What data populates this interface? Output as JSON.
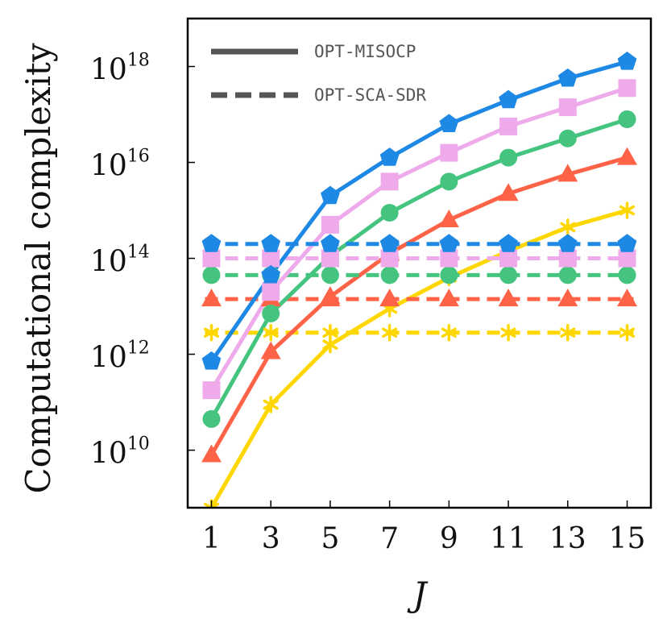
{
  "chart_data": {
    "type": "line",
    "xlabel": "J",
    "ylabel": "Computational complexity",
    "x": [
      1,
      3,
      5,
      7,
      9,
      11,
      13,
      15
    ],
    "xlim": [
      0.2,
      15.8
    ],
    "y_scale": "log",
    "ylim_log10": [
      8.8,
      19.0
    ],
    "y_ticks": [
      {
        "base": "10",
        "exp": "10",
        "log10": 10
      },
      {
        "base": "10",
        "exp": "12",
        "log10": 12
      },
      {
        "base": "10",
        "exp": "14",
        "log10": 14
      },
      {
        "base": "10",
        "exp": "16",
        "log10": 16
      },
      {
        "base": "10",
        "exp": "18",
        "log10": 18
      }
    ],
    "legend": {
      "placement": "top-left",
      "entries": [
        {
          "label": "OPT-MISOCP",
          "style": "solid"
        },
        {
          "label": "OPT-SCA-SDR",
          "style": "dashed"
        }
      ]
    },
    "groups": [
      {
        "color": "#1e88e5",
        "marker": "pentagon",
        "misocp_log10": [
          11.85,
          13.65,
          15.3,
          16.1,
          16.8,
          17.3,
          17.75,
          18.1
        ],
        "scasdr_log10": 14.3
      },
      {
        "color": "#eeaaea",
        "marker": "square",
        "misocp_log10": [
          11.25,
          13.3,
          14.7,
          15.6,
          16.2,
          16.75,
          17.15,
          17.55
        ],
        "scasdr_log10": 14.0
      },
      {
        "color": "#44c47f",
        "marker": "circle",
        "misocp_log10": [
          10.65,
          12.85,
          14.05,
          14.95,
          15.6,
          16.1,
          16.5,
          16.9
        ],
        "scasdr_log10": 13.65
      },
      {
        "color": "#ff6347",
        "marker": "triangle",
        "misocp_log10": [
          9.9,
          12.05,
          13.2,
          14.1,
          14.8,
          15.35,
          15.75,
          16.1
        ],
        "scasdr_log10": 13.15
      },
      {
        "color": "#ffd700",
        "marker": "asterisk",
        "misocp_log10": [
          8.8,
          10.95,
          12.2,
          12.95,
          13.6,
          14.15,
          14.65,
          15.0
        ],
        "scasdr_log10": 12.45
      }
    ]
  }
}
